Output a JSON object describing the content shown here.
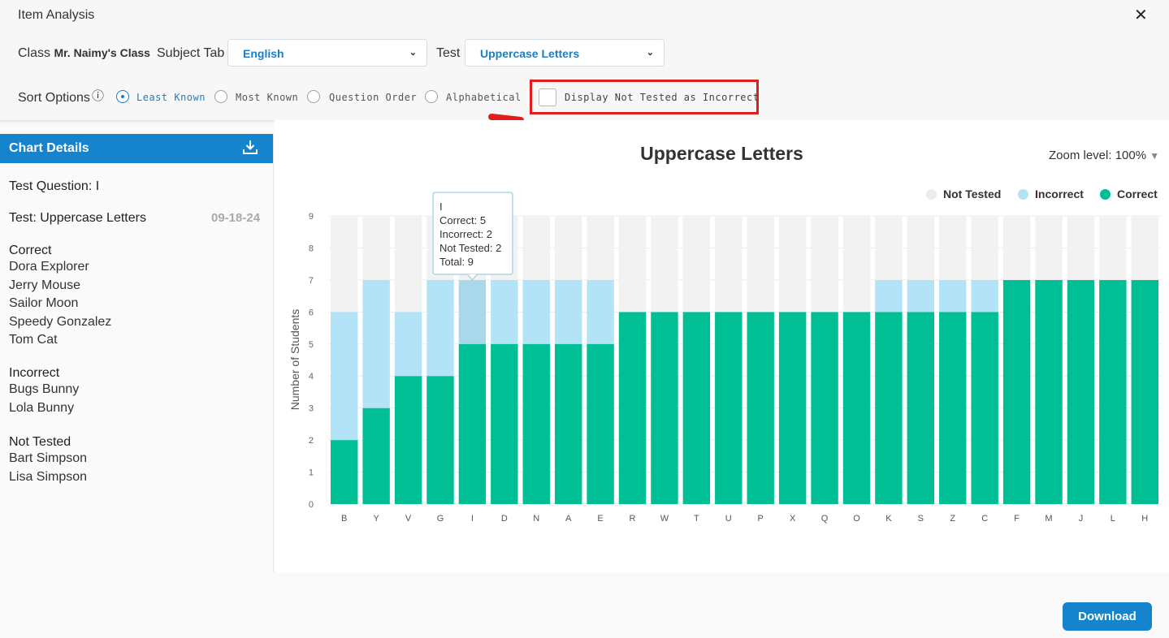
{
  "dialog": {
    "title": "Item Analysis",
    "close_glyph": "✕"
  },
  "filters": {
    "class_label": "Class",
    "class_value": "Mr. Naimy's Class",
    "subject_label": "Subject Tab",
    "subject_value": "English",
    "test_label": "Test",
    "test_value": "Uppercase Letters"
  },
  "sort": {
    "label": "Sort Options",
    "info_glyph": "ⓘ",
    "options": [
      "Least Known",
      "Most Known",
      "Question Order",
      "Alphabetical"
    ],
    "selected": "Least Known",
    "checkbox_label": "Display Not Tested as Incorrect",
    "checkbox_checked": false
  },
  "side_panel": {
    "header": "Chart Details",
    "test_question": "Test Question: I",
    "test_name": "Test: Uppercase Letters",
    "date": "09-18-24",
    "correct_title": "Correct",
    "correct": [
      "Dora Explorer",
      "Jerry Mouse",
      "Sailor Moon",
      "Speedy Gonzalez",
      "Tom Cat"
    ],
    "incorrect_title": "Incorrect",
    "incorrect": [
      "Bugs Bunny",
      "Lola Bunny"
    ],
    "not_tested_title": "Not Tested",
    "not_tested": [
      "Bart Simpson",
      "Lisa Simpson"
    ]
  },
  "zoom": {
    "label": "Zoom level:",
    "value": "100%"
  },
  "tooltip": {
    "title": "I",
    "lines": [
      "Correct: 5",
      "Incorrect: 2",
      "Not Tested: 2",
      "Total: 9"
    ]
  },
  "colors": {
    "correct": "#00bf95",
    "incorrect": "#b3e3f6",
    "not_tested": "#f2f2f2",
    "accent": "#1484cc",
    "highlight": "#e01e1e"
  },
  "download_label": "Download",
  "chart_data": {
    "type": "bar",
    "stacked": true,
    "title": "Uppercase Letters",
    "ylabel": "Number of Students",
    "xlabel": "",
    "ylim": [
      0,
      9
    ],
    "yticks": [
      "0",
      "1",
      "2",
      "3",
      "4",
      "5",
      "6",
      "7",
      "8",
      "9"
    ],
    "legend_position": "top-right",
    "grid": true,
    "categories": [
      "B",
      "Y",
      "V",
      "G",
      "I",
      "D",
      "N",
      "A",
      "E",
      "R",
      "W",
      "T",
      "U",
      "P",
      "X",
      "Q",
      "O",
      "K",
      "S",
      "Z",
      "C",
      "F",
      "M",
      "J",
      "L",
      "H"
    ],
    "series": [
      {
        "name": "Correct",
        "color": "#00bf95",
        "values": [
          2,
          3,
          4,
          4,
          5,
          5,
          5,
          5,
          5,
          6,
          6,
          6,
          6,
          6,
          6,
          6,
          6,
          6,
          6,
          6,
          6,
          7,
          7,
          7,
          7,
          7
        ]
      },
      {
        "name": "Incorrect",
        "color": "#b3e3f6",
        "values": [
          4,
          4,
          2,
          3,
          2,
          2,
          2,
          2,
          2,
          0,
          0,
          0,
          0,
          0,
          0,
          0,
          0,
          1,
          1,
          1,
          1,
          0,
          0,
          0,
          0,
          0
        ]
      },
      {
        "name": "Not Tested",
        "color": "#f2f2f2",
        "values": [
          3,
          2,
          3,
          2,
          2,
          2,
          2,
          2,
          2,
          3,
          3,
          3,
          3,
          3,
          3,
          3,
          3,
          2,
          2,
          2,
          2,
          2,
          2,
          2,
          2,
          2
        ]
      }
    ],
    "hovered_category": "I"
  }
}
